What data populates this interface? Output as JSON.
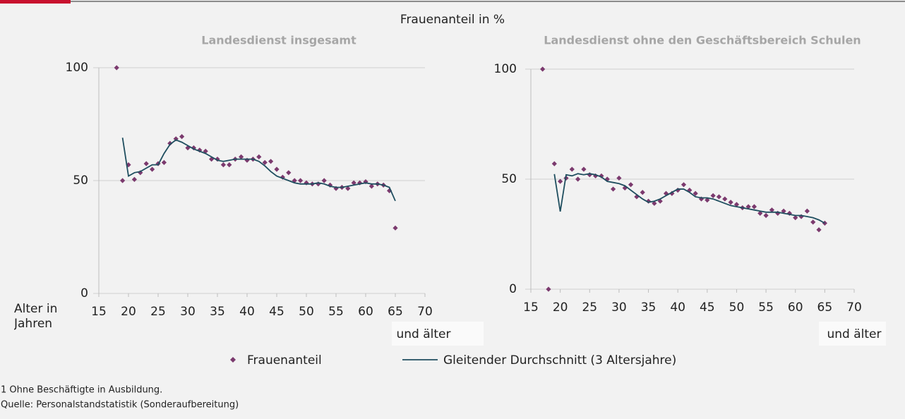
{
  "title": "Frauenanteil in %",
  "chart_data": [
    {
      "type": "scatter-line",
      "title": "Landesdienst insgesamt",
      "xlabel": "Alter in Jahren",
      "annotation": "und älter",
      "xlim": [
        15,
        70
      ],
      "xticks": [
        15,
        20,
        25,
        30,
        35,
        40,
        45,
        50,
        55,
        60,
        65,
        70
      ],
      "ylim": [
        0,
        100
      ],
      "yticks": [
        0,
        50,
        100
      ],
      "grid": true,
      "series": [
        {
          "name": "Frauenanteil",
          "type": "scatter",
          "color": "#7b3a6e",
          "x": [
            18,
            19,
            20,
            21,
            22,
            23,
            24,
            25,
            26,
            27,
            28,
            29,
            30,
            31,
            32,
            33,
            34,
            35,
            36,
            37,
            38,
            39,
            40,
            41,
            42,
            43,
            44,
            45,
            46,
            47,
            48,
            49,
            50,
            51,
            52,
            53,
            54,
            55,
            56,
            57,
            58,
            59,
            60,
            61,
            62,
            63,
            64,
            65
          ],
          "values": [
            100,
            50,
            57,
            50.5,
            53.5,
            57.5,
            55,
            57.5,
            58,
            66.5,
            68.5,
            69.5,
            64.5,
            64.5,
            63.5,
            63,
            59.5,
            59.5,
            57,
            57,
            59.5,
            60.5,
            59,
            59.5,
            60.5,
            58,
            58.5,
            55,
            51.5,
            53.5,
            50,
            50,
            49,
            48.5,
            48.5,
            50,
            48,
            46.5,
            47,
            46.5,
            49,
            49,
            49.5,
            47.5,
            48.5,
            48,
            45.5,
            29
          ]
        },
        {
          "name": "Gleitender Durchschnitt (3 Altersjahre)",
          "type": "line",
          "color": "#1f4e5f",
          "x": [
            19,
            20,
            21,
            22,
            23,
            24,
            25,
            26,
            27,
            28,
            29,
            30,
            31,
            32,
            33,
            34,
            35,
            36,
            37,
            38,
            39,
            40,
            41,
            42,
            43,
            44,
            45,
            46,
            47,
            48,
            49,
            50,
            51,
            52,
            53,
            54,
            55,
            56,
            57,
            58,
            59,
            60,
            61,
            62,
            63,
            64,
            65
          ],
          "values": [
            69,
            52,
            53.5,
            54,
            55.5,
            57,
            57,
            62,
            66,
            68,
            67,
            65.5,
            64,
            63,
            62,
            60.5,
            59,
            58.5,
            59,
            59.5,
            59.5,
            59.5,
            59.5,
            58.5,
            56.5,
            54,
            52,
            51,
            50,
            49,
            48.5,
            48.5,
            48.5,
            49,
            48.5,
            47.5,
            47,
            47,
            47.5,
            48,
            48.5,
            49,
            48.5,
            48.5,
            48,
            47,
            41
          ]
        }
      ]
    },
    {
      "type": "scatter-line",
      "title": "Landesdienst ohne den Geschäftsbereich Schulen",
      "annotation": "und älter",
      "xlim": [
        15,
        70
      ],
      "xticks": [
        15,
        20,
        25,
        30,
        35,
        40,
        45,
        50,
        55,
        60,
        65,
        70
      ],
      "ylim": [
        0,
        100
      ],
      "yticks": [
        0,
        50,
        100
      ],
      "grid": true,
      "series": [
        {
          "type": "scatter",
          "color": "#7b3a6e",
          "x": [
            17,
            18,
            19,
            20,
            21,
            22,
            23,
            24,
            25,
            26,
            27,
            28,
            29,
            30,
            31,
            32,
            33,
            34,
            35,
            36,
            37,
            38,
            39,
            40,
            41,
            42,
            43,
            44,
            45,
            46,
            47,
            48,
            49,
            50,
            51,
            52,
            53,
            54,
            55,
            56,
            57,
            58,
            59,
            60,
            61,
            62,
            63,
            64,
            65
          ],
          "values": [
            100,
            0,
            57,
            49,
            50.5,
            54.5,
            50,
            54.5,
            52,
            51.5,
            51.5,
            50,
            45.5,
            50.5,
            46,
            47.5,
            42,
            44,
            40,
            39,
            40,
            43.5,
            43.5,
            45,
            47.5,
            45,
            43.5,
            41,
            40.5,
            42.5,
            42,
            41,
            39.5,
            38.5,
            37,
            37.5,
            37.5,
            34.5,
            33.5,
            36,
            34.5,
            35.5,
            34.5,
            32.5,
            33,
            35.5,
            30.5,
            27,
            30
          ]
        },
        {
          "type": "line",
          "color": "#1f4e5f",
          "x": [
            19,
            20,
            21,
            22,
            23,
            24,
            25,
            26,
            27,
            28,
            29,
            30,
            31,
            32,
            33,
            34,
            35,
            36,
            37,
            38,
            39,
            40,
            41,
            42,
            43,
            44,
            45,
            46,
            47,
            48,
            49,
            50,
            51,
            52,
            53,
            54,
            55,
            56,
            57,
            58,
            59,
            60,
            61,
            62,
            63,
            64,
            65
          ],
          "values": [
            52.3,
            35.3,
            52,
            51.5,
            52.5,
            52,
            52.5,
            52,
            51,
            49,
            48.5,
            48,
            47,
            45,
            43,
            41,
            39.5,
            40,
            41,
            42.5,
            44,
            45.5,
            45.5,
            44,
            42,
            41.5,
            41.5,
            41,
            40,
            39,
            38,
            37.5,
            37,
            36.5,
            36,
            35.5,
            35,
            35,
            35,
            34.5,
            34,
            33.5,
            33.5,
            33,
            32.5,
            31.5,
            30
          ]
        }
      ]
    }
  ],
  "footnotes": [
    "1 Ohne Beschäftigte in Ausbildung.",
    "Quelle: Personalstandstatistik (Sonderaufbereitung)"
  ]
}
